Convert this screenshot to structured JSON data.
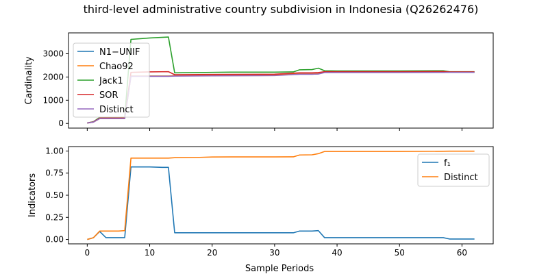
{
  "figure": {
    "title": "third-level administrative country subdivision in Indonesia (Q26262476)"
  },
  "chart_data": [
    {
      "type": "line",
      "ylabel": "Cardinality",
      "xlabel": "",
      "xlim": [
        -3,
        65
      ],
      "ylim": [
        -200,
        3900
      ],
      "xticks": [
        0,
        10,
        20,
        30,
        40,
        50,
        60
      ],
      "yticks": [
        0,
        1000,
        2000,
        3000
      ],
      "show_xticklabels": false,
      "grid": false,
      "legend": "upper-left",
      "series": [
        {
          "name": "N1−UNIF",
          "color": "#1f77b4",
          "x": [
            0,
            1,
            2,
            3,
            4,
            5,
            6,
            7,
            10,
            12,
            13,
            14,
            20,
            30,
            34,
            36,
            37,
            38,
            40,
            50,
            57,
            58,
            62
          ],
          "y": [
            20,
            60,
            210,
            210,
            210,
            210,
            210,
            2040,
            2040,
            2040,
            2040,
            2060,
            2070,
            2080,
            2120,
            2120,
            2130,
            2200,
            2200,
            2200,
            2200,
            2200,
            2200
          ]
        },
        {
          "name": "Chao92",
          "color": "#ff7f0e",
          "x": [
            0,
            1,
            2,
            3,
            4,
            5,
            6,
            7,
            10,
            13,
            14,
            20,
            30,
            34,
            36,
            37,
            38,
            40,
            50,
            57,
            58,
            62
          ],
          "y": [
            20,
            60,
            210,
            210,
            210,
            210,
            210,
            2040,
            2040,
            2040,
            2060,
            2070,
            2080,
            2140,
            2150,
            2170,
            2230,
            2230,
            2230,
            2240,
            2220,
            2220
          ]
        },
        {
          "name": "Jack1",
          "color": "#2ca02c",
          "x": [
            0,
            1,
            2,
            3,
            4,
            5,
            6,
            7,
            10,
            13,
            14,
            18,
            20,
            23,
            30,
            33,
            34,
            36,
            37,
            38,
            40,
            50,
            57,
            58,
            62
          ],
          "y": [
            20,
            80,
            260,
            260,
            260,
            260,
            270,
            3620,
            3680,
            3720,
            2180,
            2190,
            2200,
            2210,
            2210,
            2220,
            2310,
            2320,
            2380,
            2270,
            2260,
            2260,
            2270,
            2230,
            2230
          ]
        },
        {
          "name": "SOR",
          "color": "#d62728",
          "x": [
            0,
            1,
            2,
            3,
            4,
            5,
            6,
            7,
            10,
            13,
            14,
            20,
            30,
            34,
            36,
            37,
            38,
            40,
            50,
            57,
            58,
            62
          ],
          "y": [
            20,
            70,
            230,
            230,
            230,
            230,
            235,
            2200,
            2220,
            2230,
            2100,
            2110,
            2120,
            2180,
            2180,
            2190,
            2230,
            2230,
            2230,
            2235,
            2220,
            2220
          ]
        },
        {
          "name": "Distinct",
          "color": "#9467bd",
          "x": [
            0,
            1,
            2,
            3,
            4,
            5,
            6,
            7,
            10,
            13,
            14,
            20,
            30,
            34,
            36,
            37,
            38,
            40,
            50,
            57,
            58,
            62
          ],
          "y": [
            20,
            60,
            210,
            210,
            210,
            210,
            210,
            2030,
            2030,
            2030,
            2040,
            2050,
            2060,
            2120,
            2120,
            2130,
            2190,
            2190,
            2190,
            2195,
            2200,
            2200
          ]
        }
      ]
    },
    {
      "type": "line",
      "ylabel": "Indicators",
      "xlabel": "Sample Periods",
      "xlim": [
        -3,
        65
      ],
      "ylim": [
        -0.05,
        1.05
      ],
      "xticks": [
        0,
        10,
        20,
        30,
        40,
        50,
        60
      ],
      "yticks": [
        0.0,
        0.25,
        0.5,
        0.75,
        1.0
      ],
      "ytick_labels": [
        "0.00",
        "0.25",
        "0.50",
        "0.75",
        "1.00"
      ],
      "show_xticklabels": true,
      "grid": false,
      "legend": "upper-right",
      "series": [
        {
          "name": "f₁",
          "color": "#1f77b4",
          "x": [
            0,
            1,
            2,
            3,
            4,
            5,
            6,
            7,
            10,
            12,
            13,
            14,
            20,
            30,
            33,
            34,
            36,
            37,
            38,
            40,
            50,
            57,
            58,
            62
          ],
          "y": [
            0.0,
            0.02,
            0.09,
            0.02,
            0.02,
            0.02,
            0.02,
            0.82,
            0.82,
            0.815,
            0.815,
            0.075,
            0.075,
            0.075,
            0.075,
            0.095,
            0.095,
            0.1,
            0.02,
            0.02,
            0.02,
            0.02,
            0.005,
            0.005
          ]
        },
        {
          "name": "Distinct",
          "color": "#ff7f0e",
          "x": [
            0,
            1,
            2,
            3,
            4,
            5,
            6,
            7,
            10,
            13,
            14,
            18,
            20,
            23,
            30,
            33,
            34,
            36,
            37,
            38,
            40,
            50,
            57,
            58,
            62
          ],
          "y": [
            0.0,
            0.02,
            0.095,
            0.095,
            0.095,
            0.095,
            0.1,
            0.92,
            0.92,
            0.92,
            0.925,
            0.928,
            0.932,
            0.933,
            0.933,
            0.934,
            0.955,
            0.957,
            0.97,
            0.995,
            0.995,
            0.995,
            0.997,
            0.998,
            0.998
          ]
        }
      ]
    }
  ]
}
